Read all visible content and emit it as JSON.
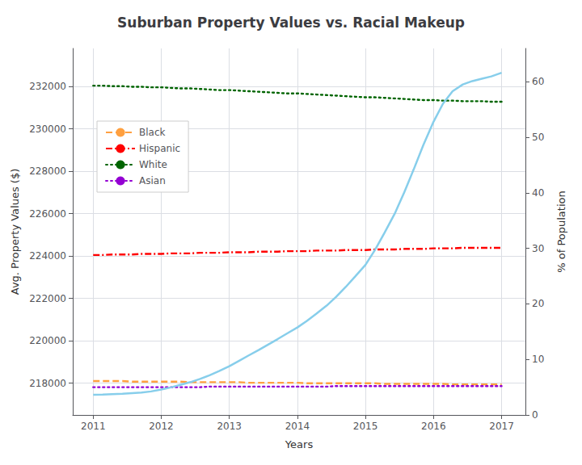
{
  "chart_data": {
    "type": "line",
    "title": "Suburban Property Values vs. Racial Makeup",
    "xlabel": "Years",
    "ylabel": "Avg. Property Values ($)",
    "y2label": "% of Population",
    "x": [
      2011,
      2011.14,
      2011.28,
      2011.43,
      2011.57,
      2011.71,
      2011.85,
      2012,
      2012.14,
      2012.28,
      2012.43,
      2012.57,
      2012.71,
      2012.85,
      2013,
      2013.14,
      2013.28,
      2013.43,
      2013.57,
      2013.71,
      2013.85,
      2014,
      2014.14,
      2014.28,
      2014.43,
      2014.57,
      2014.71,
      2014.85,
      2015,
      2015.14,
      2015.28,
      2015.43,
      2015.57,
      2015.71,
      2015.85,
      2016,
      2016.14,
      2016.28,
      2016.43,
      2016.57,
      2016.71,
      2016.85,
      2017
    ],
    "series": [
      {
        "name": "Black",
        "axis": "y2",
        "color": "#FFA040",
        "line_style": "dashed",
        "values": [
          6.1,
          6.1,
          6.1,
          6.1,
          6.0,
          6.0,
          6.0,
          6.0,
          6.0,
          6.0,
          5.9,
          5.9,
          5.9,
          5.9,
          5.9,
          5.9,
          5.8,
          5.8,
          5.8,
          5.8,
          5.8,
          5.8,
          5.7,
          5.7,
          5.7,
          5.7,
          5.7,
          5.7,
          5.7,
          5.7,
          5.6,
          5.6,
          5.6,
          5.6,
          5.6,
          5.6,
          5.6,
          5.5,
          5.5,
          5.5,
          5.5,
          5.5,
          5.5
        ]
      },
      {
        "name": "Hispanic",
        "axis": "y2",
        "color": "#FF0000",
        "line_style": "dashdot",
        "values": [
          28.8,
          28.8,
          28.9,
          28.9,
          28.9,
          29.0,
          29.0,
          29.0,
          29.1,
          29.1,
          29.1,
          29.2,
          29.2,
          29.2,
          29.3,
          29.3,
          29.3,
          29.4,
          29.4,
          29.4,
          29.5,
          29.5,
          29.5,
          29.6,
          29.6,
          29.6,
          29.7,
          29.7,
          29.7,
          29.8,
          29.8,
          29.8,
          29.9,
          29.9,
          29.9,
          30.0,
          30.0,
          30.0,
          30.1,
          30.1,
          30.1,
          30.1,
          30.1
        ]
      },
      {
        "name": "White",
        "axis": "y2",
        "color": "#006400",
        "line_style": "dotted",
        "values": [
          59.3,
          59.3,
          59.2,
          59.2,
          59.1,
          59.1,
          59.0,
          59.0,
          58.9,
          58.8,
          58.8,
          58.7,
          58.6,
          58.5,
          58.5,
          58.4,
          58.3,
          58.2,
          58.1,
          58.0,
          57.9,
          57.9,
          57.8,
          57.7,
          57.6,
          57.5,
          57.4,
          57.3,
          57.2,
          57.2,
          57.1,
          57.0,
          56.9,
          56.8,
          56.7,
          56.7,
          56.6,
          56.6,
          56.5,
          56.5,
          56.5,
          56.4,
          56.4
        ]
      },
      {
        "name": "Asian",
        "axis": "y2",
        "color": "#9400D3",
        "line_style": "dotted",
        "values": [
          5.0,
          5.0,
          5.0,
          5.0,
          5.0,
          5.0,
          5.0,
          5.0,
          5.0,
          5.0,
          5.0,
          5.0,
          5.1,
          5.1,
          5.1,
          5.1,
          5.1,
          5.1,
          5.1,
          5.1,
          5.1,
          5.1,
          5.1,
          5.1,
          5.1,
          5.2,
          5.2,
          5.2,
          5.2,
          5.2,
          5.2,
          5.2,
          5.2,
          5.2,
          5.2,
          5.2,
          5.2,
          5.2,
          5.2,
          5.2,
          5.2,
          5.2,
          5.2
        ]
      },
      {
        "axis": "y",
        "color": "#87CEEB",
        "line_style": "solid",
        "values": [
          217450,
          217460,
          217480,
          217500,
          217530,
          217560,
          217610,
          217700,
          217800,
          217920,
          218050,
          218200,
          218370,
          218570,
          218800,
          219050,
          219300,
          219560,
          219820,
          220080,
          220350,
          220630,
          220940,
          221280,
          221660,
          222080,
          222540,
          223040,
          223580,
          224290,
          225100,
          226000,
          227010,
          228100,
          229240,
          230340,
          231200,
          231780,
          232100,
          232260,
          232370,
          232480,
          232650
        ]
      }
    ],
    "xlim": [
      2010.7,
      2017.35
    ],
    "xticks": [
      2011,
      2012,
      2013,
      2014,
      2015,
      2016,
      2017
    ],
    "ylim": [
      216500,
      233800
    ],
    "yticks": [
      218000,
      220000,
      222000,
      224000,
      226000,
      228000,
      230000,
      232000
    ],
    "y2lim": [
      0,
      66
    ],
    "y2ticks": [
      0,
      10,
      20,
      30,
      40,
      50,
      60
    ],
    "grid": true,
    "legend": "upper left"
  }
}
